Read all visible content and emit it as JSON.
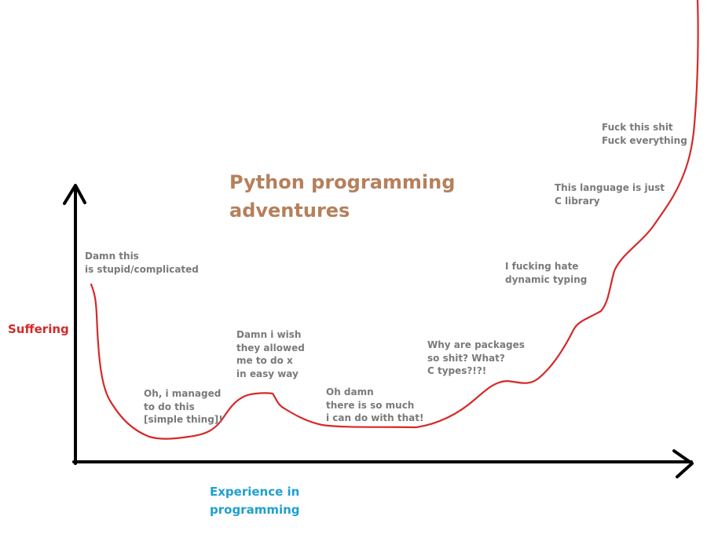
{
  "diagram": {
    "title": "Python programming\nadventures",
    "y_axis_label": "Suffering",
    "x_axis_label": "Experience in\nprogramming",
    "annotations": [
      {
        "id": "stupid",
        "text": "Damn this\nis stupid/complicated"
      },
      {
        "id": "managed",
        "text": "Oh, i managed\nto do this\n[simple thing]!"
      },
      {
        "id": "wish",
        "text": "Damn i wish\nthey allowed\nme to do x\nin easy way"
      },
      {
        "id": "so-much",
        "text": "Oh damn\nthere is so much\ni can do with that!"
      },
      {
        "id": "packages",
        "text": "Why are packages\nso shit? What?\nC types?!?!"
      },
      {
        "id": "dynamic",
        "text": "I fucking hate\ndynamic typing"
      },
      {
        "id": "c-library",
        "text": "This language is just\nC library"
      },
      {
        "id": "fuck",
        "text": "Fuck this shit\nFuck everything"
      }
    ],
    "colors": {
      "title": "#b5805c",
      "curve": "#d42a2a",
      "y_label": "#d42a2a",
      "x_label": "#1fa0d0",
      "annotation": "#7a7a7a",
      "axes": "#000000"
    }
  }
}
